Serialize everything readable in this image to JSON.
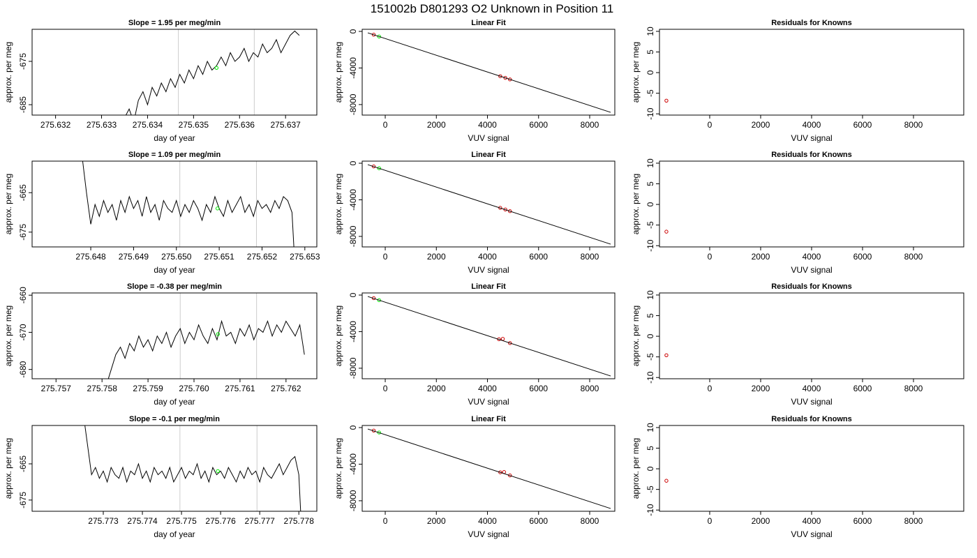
{
  "title": "151002b     D801293   O2 Unknown in Position  11",
  "chart_data": [
    {
      "type": "line",
      "title": "Slope =  1.95  per meg/min",
      "xlabel": "day of year",
      "ylabel": "approx. per meg",
      "xlim": [
        275.63149,
        275.63768
      ],
      "ylim": [
        -687.4,
        -667.6
      ],
      "xticks": [
        275.632,
        275.633,
        275.634,
        275.635,
        275.636,
        275.637
      ],
      "yticks": [
        -675,
        -685
      ],
      "vlines": [
        275.63467,
        275.63632
      ],
      "vline_color": "#cccccc",
      "series": [
        {
          "style": "line",
          "color": "#000000",
          "x": [
            275.6335,
            275.6336,
            275.6337,
            275.6338,
            275.6339,
            275.634,
            275.6341,
            275.6342,
            275.6343,
            275.6344,
            275.6345,
            275.6346,
            275.6347,
            275.6348,
            275.6349,
            275.635,
            275.6351,
            275.6352,
            275.6353,
            275.6354,
            275.6355,
            275.6356,
            275.6357,
            275.6358,
            275.6359,
            275.636,
            275.6361,
            275.6362,
            275.6363,
            275.6364,
            275.6365,
            275.6366,
            275.6367,
            275.6368,
            275.6369,
            275.637,
            275.6371,
            275.6372,
            275.6373
          ],
          "values": [
            -688,
            -686,
            -689,
            -684,
            -682,
            -685,
            -681,
            -683,
            -680,
            -682,
            -679,
            -681,
            -678,
            -680,
            -677,
            -679,
            -676,
            -678,
            -675,
            -677,
            -676,
            -674,
            -676,
            -673,
            -675,
            -674,
            -672,
            -675,
            -673,
            -674,
            -671,
            -673,
            -672,
            -670,
            -673,
            -671,
            -669,
            -668,
            -669
          ]
        },
        {
          "style": "points",
          "color": "#00ee00",
          "x": [
            275.6355
          ],
          "values": [
            -676.5
          ]
        }
      ]
    },
    {
      "type": "scatter",
      "title": "Linear Fit",
      "xlabel": "VUV signal",
      "ylabel": "approx. per meg",
      "xlim": [
        -902,
        8983
      ],
      "ylim": [
        -9150,
        230
      ],
      "xticks": [
        0,
        2000,
        4000,
        6000,
        8000
      ],
      "yticks": [
        0,
        -4000,
        -8000
      ],
      "series": [
        {
          "style": "points",
          "color": "#cc0000",
          "x": [
            -450,
            4500,
            4700,
            4880
          ],
          "values": [
            -360,
            -4900,
            -5080,
            -5250
          ]
        },
        {
          "style": "points",
          "color": "#00ee00",
          "x": [
            -240
          ],
          "values": [
            -560
          ]
        },
        {
          "style": "line",
          "color": "#000000",
          "x": [
            -683,
            8820
          ],
          "values": [
            -154,
            -8850
          ]
        }
      ]
    },
    {
      "type": "scatter",
      "title": "Residuals for Knowns",
      "xlabel": "VUV signal",
      "ylabel": "approx. per meg",
      "xlim": [
        -1972,
        9973
      ],
      "ylim": [
        -10.3,
        10.5
      ],
      "xticks": [
        0,
        2000,
        4000,
        6000,
        8000
      ],
      "yticks": [
        -10,
        -5,
        0,
        5,
        10
      ],
      "series": [
        {
          "style": "points",
          "color": "#cc0000",
          "x": [
            -1700
          ],
          "values": [
            -6.8
          ]
        }
      ]
    },
    {
      "type": "line",
      "title": "Slope =  1.09  per meg/min",
      "xlabel": "day of year",
      "ylabel": "approx. per meg",
      "xlim": [
        275.64663,
        275.65328
      ],
      "ylim": [
        -678.75,
        -657
      ],
      "xticks": [
        275.648,
        275.649,
        {
          "value": 275.65,
          "label": "275.650"
        },
        275.651,
        275.652,
        275.653
      ],
      "yticks": [
        -665,
        -675
      ],
      "vlines": [
        275.65008,
        275.65187
      ],
      "vline_color": "#cccccc",
      "series": [
        {
          "style": "line",
          "color": "#000000",
          "x": [
            275.6478,
            275.6479,
            275.648,
            275.6481,
            275.6482,
            275.6483,
            275.6484,
            275.6485,
            275.6486,
            275.6487,
            275.6488,
            275.6489,
            275.649,
            275.6491,
            275.6492,
            275.6493,
            275.6494,
            275.6495,
            275.6496,
            275.6497,
            275.6498,
            275.6499,
            275.65,
            275.6501,
            275.6502,
            275.6503,
            275.6504,
            275.6505,
            275.6506,
            275.6507,
            275.6508,
            275.6509,
            275.651,
            275.6511,
            275.6512,
            275.6513,
            275.6514,
            275.6515,
            275.6516,
            275.6517,
            275.6518,
            275.6519,
            275.652,
            275.6521,
            275.6522,
            275.6523,
            275.6524,
            275.6525,
            275.6526,
            275.6527,
            275.6528
          ],
          "values": [
            -656,
            -665,
            -673,
            -668,
            -671,
            -667,
            -670,
            -668,
            -672,
            -667,
            -670,
            -666,
            -669,
            -667,
            -671,
            -666,
            -670,
            -668,
            -672,
            -667,
            -669,
            -670,
            -667,
            -671,
            -668,
            -670,
            -667,
            -669,
            -672,
            -668,
            -670,
            -666,
            -669,
            -671,
            -667,
            -670,
            -668,
            -666,
            -670,
            -668,
            -671,
            -667,
            -669,
            -668,
            -670,
            -667,
            -669,
            -666,
            -667,
            -670,
            -690
          ]
        },
        {
          "style": "points",
          "color": "#00ee00",
          "x": [
            275.65096
          ],
          "values": [
            -669
          ]
        }
      ]
    },
    {
      "type": "scatter",
      "title": "Linear Fit",
      "xlabel": "VUV signal",
      "ylabel": "approx. per meg",
      "xlim": [
        -902,
        8983
      ],
      "ylim": [
        -9150,
        230
      ],
      "xticks": [
        0,
        2000,
        4000,
        6000,
        8000
      ],
      "yticks": [
        0,
        -4000,
        -8000
      ],
      "series": [
        {
          "style": "points",
          "color": "#cc0000",
          "x": [
            -450,
            4500,
            4700,
            4880
          ],
          "values": [
            -350,
            -4880,
            -5060,
            -5240
          ]
        },
        {
          "style": "points",
          "color": "#00ee00",
          "x": [
            -240
          ],
          "values": [
            -550
          ]
        },
        {
          "style": "line",
          "color": "#000000",
          "x": [
            -683,
            8820
          ],
          "values": [
            -154,
            -8850
          ]
        }
      ]
    },
    {
      "type": "scatter",
      "title": "Residuals for Knowns",
      "xlabel": "VUV signal",
      "ylabel": "approx. per meg",
      "xlim": [
        -1972,
        9973
      ],
      "ylim": [
        -10.3,
        10.5
      ],
      "xticks": [
        0,
        2000,
        4000,
        6000,
        8000
      ],
      "yticks": [
        -10,
        -5,
        0,
        5,
        10
      ],
      "series": [
        {
          "style": "points",
          "color": "#cc0000",
          "x": [
            -1700
          ],
          "values": [
            -6.6
          ]
        }
      ]
    },
    {
      "type": "line",
      "title": "Slope =  -0.38  per meg/min",
      "xlabel": "day of year",
      "ylabel": "approx. per meg",
      "xlim": [
        275.75648,
        275.76267
      ],
      "ylim": [
        -682.5,
        -659.4
      ],
      "xticks": [
        275.757,
        275.758,
        275.759,
        {
          "value": 275.76,
          "label": "275.760"
        },
        275.761,
        275.762
      ],
      "yticks": [
        -660,
        -670,
        -680
      ],
      "vlines": [
        275.7597,
        275.76136
      ],
      "vline_color": "#cccccc",
      "series": [
        {
          "style": "line",
          "color": "#000000",
          "x": [
            275.7581,
            275.7582,
            275.7583,
            275.7584,
            275.7585,
            275.7586,
            275.7587,
            275.7588,
            275.7589,
            275.759,
            275.7591,
            275.7592,
            275.7593,
            275.7594,
            275.7595,
            275.7596,
            275.7597,
            275.7598,
            275.7599,
            275.76,
            275.7601,
            275.7602,
            275.7603,
            275.7604,
            275.7605,
            275.7606,
            275.7607,
            275.7608,
            275.7609,
            275.761,
            275.7611,
            275.7612,
            275.7613,
            275.7614,
            275.7615,
            275.7616,
            275.7617,
            275.7618,
            275.7619,
            275.762,
            275.7621,
            275.7622,
            275.7623,
            275.7624
          ],
          "values": [
            -684,
            -680,
            -676,
            -674,
            -677,
            -673,
            -675,
            -671,
            -674,
            -672,
            -675,
            -671,
            -673,
            -670,
            -674,
            -671,
            -669,
            -673,
            -670,
            -672,
            -668,
            -671,
            -673,
            -669,
            -672,
            -667,
            -671,
            -670,
            -673,
            -669,
            -671,
            -668,
            -672,
            -669,
            -670,
            -667,
            -671,
            -668,
            -670,
            -667,
            -669,
            -671,
            -668,
            -676
          ]
        },
        {
          "style": "points",
          "color": "#00ee00",
          "x": [
            275.76052
          ],
          "values": [
            -670.5
          ]
        }
      ]
    },
    {
      "type": "scatter",
      "title": "Linear Fit",
      "xlabel": "VUV signal",
      "ylabel": "approx. per meg",
      "xlim": [
        -902,
        8983
      ],
      "ylim": [
        -9150,
        230
      ],
      "xticks": [
        0,
        2000,
        4000,
        6000,
        8000
      ],
      "yticks": [
        0,
        -4000,
        -8000
      ],
      "series": [
        {
          "style": "points",
          "color": "#cc0000",
          "x": [
            -450,
            4450,
            4600,
            4880
          ],
          "values": [
            -340,
            -4830,
            -4790,
            -5250
          ]
        },
        {
          "style": "points",
          "color": "#00ee00",
          "x": [
            -240
          ],
          "values": [
            -560
          ]
        },
        {
          "style": "line",
          "color": "#000000",
          "x": [
            -683,
            8820
          ],
          "values": [
            -154,
            -8850
          ]
        }
      ]
    },
    {
      "type": "scatter",
      "title": "Residuals for Knowns",
      "xlabel": "VUV signal",
      "ylabel": "approx. per meg",
      "xlim": [
        -1972,
        9973
      ],
      "ylim": [
        -10.3,
        10.5
      ],
      "xticks": [
        0,
        2000,
        4000,
        6000,
        8000
      ],
      "yticks": [
        -10,
        -5,
        0,
        5,
        10
      ],
      "series": [
        {
          "style": "points",
          "color": "#cc0000",
          "x": [
            -1700
          ],
          "values": [
            -4.6
          ]
        }
      ]
    },
    {
      "type": "line",
      "title": "Slope =  -0.1  per meg/min",
      "xlabel": "day of year",
      "ylabel": "approx. per meg",
      "xlim": [
        275.77118,
        275.77846
      ],
      "ylim": [
        -678.1,
        -654.4
      ],
      "xticks": [
        275.773,
        275.774,
        275.775,
        275.776,
        275.777,
        275.778
      ],
      "yticks": [
        -665,
        -675
      ],
      "vlines": [
        275.77496,
        275.77693
      ],
      "vline_color": "#cccccc",
      "series": [
        {
          "style": "line",
          "color": "#000000",
          "x": [
            275.7725,
            275.7726,
            275.7727,
            275.7728,
            275.7729,
            275.773,
            275.7731,
            275.7732,
            275.7733,
            275.7734,
            275.7735,
            275.7736,
            275.7737,
            275.7738,
            275.7739,
            275.774,
            275.7741,
            275.7742,
            275.7743,
            275.7744,
            275.7745,
            275.7746,
            275.7747,
            275.7748,
            275.7749,
            275.775,
            275.7751,
            275.7752,
            275.7753,
            275.7754,
            275.7755,
            275.7756,
            275.7757,
            275.7758,
            275.7759,
            275.776,
            275.7761,
            275.7762,
            275.7763,
            275.7764,
            275.7765,
            275.7766,
            275.7767,
            275.7768,
            275.7769,
            275.777,
            275.7771,
            275.7772,
            275.7773,
            275.7774,
            275.7775,
            275.7776,
            275.7777,
            275.7778,
            275.7779,
            275.778,
            275.7781
          ],
          "values": [
            -652,
            -660,
            -668,
            -666,
            -669,
            -667,
            -670,
            -666,
            -668,
            -669,
            -666,
            -670,
            -667,
            -668,
            -665,
            -669,
            -667,
            -670,
            -666,
            -668,
            -667,
            -669,
            -666,
            -670,
            -668,
            -666,
            -669,
            -667,
            -668,
            -665,
            -669,
            -667,
            -670,
            -666,
            -668,
            -667,
            -669,
            -666,
            -668,
            -670,
            -667,
            -669,
            -666,
            -668,
            -667,
            -670,
            -666,
            -668,
            -669,
            -667,
            -665,
            -668,
            -666,
            -664,
            -663,
            -668,
            -690
          ]
        },
        {
          "style": "points",
          "color": "#00ee00",
          "x": [
            275.77593
          ],
          "values": [
            -667
          ]
        }
      ]
    },
    {
      "type": "scatter",
      "title": "Linear Fit",
      "xlabel": "VUV signal",
      "ylabel": "approx. per meg",
      "xlim": [
        -902,
        8983
      ],
      "ylim": [
        -9150,
        230
      ],
      "xticks": [
        0,
        2000,
        4000,
        6000,
        8000
      ],
      "yticks": [
        0,
        -4000,
        -8000
      ],
      "series": [
        {
          "style": "points",
          "color": "#cc0000",
          "x": [
            -450,
            4500,
            4650,
            4880
          ],
          "values": [
            -330,
            -4890,
            -4860,
            -5230
          ]
        },
        {
          "style": "points",
          "color": "#00ee00",
          "x": [
            -240
          ],
          "values": [
            -540
          ]
        },
        {
          "style": "line",
          "color": "#000000",
          "x": [
            -683,
            8820
          ],
          "values": [
            -154,
            -8850
          ]
        }
      ]
    },
    {
      "type": "scatter",
      "title": "Residuals for Knowns",
      "xlabel": "VUV signal",
      "ylabel": "approx. per meg",
      "xlim": [
        -1972,
        9973
      ],
      "ylim": [
        -10.3,
        10.5
      ],
      "xticks": [
        0,
        2000,
        4000,
        6000,
        8000
      ],
      "yticks": [
        -10,
        -5,
        0,
        5,
        10
      ],
      "series": [
        {
          "style": "points",
          "color": "#cc0000",
          "x": [
            -1700
          ],
          "values": [
            -2.9
          ]
        }
      ]
    }
  ]
}
